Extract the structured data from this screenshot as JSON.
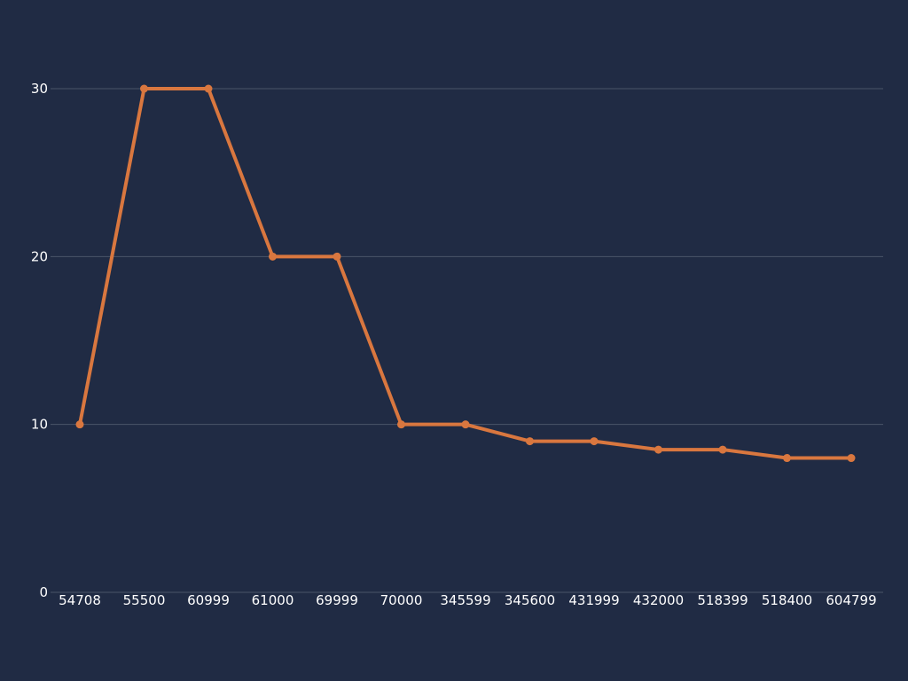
{
  "chart_data": {
    "type": "line",
    "title": "",
    "xlabel": "",
    "ylabel": "",
    "categories": [
      "54708",
      "55500",
      "60999",
      "61000",
      "69999",
      "70000",
      "345599",
      "345600",
      "431999",
      "432000",
      "518399",
      "518400",
      "604799"
    ],
    "series": [
      {
        "values": [
          10,
          30,
          30,
          20,
          20,
          10,
          10,
          9,
          9,
          8.5,
          8.5,
          8,
          8
        ]
      }
    ],
    "ylim": [
      0,
      30
    ],
    "yticks": [
      0,
      10,
      20,
      30
    ],
    "grid": true,
    "colors": {
      "background": "#202b44",
      "line": "#d9773f",
      "grid": "#4a5569",
      "text": "#ffffff"
    }
  }
}
